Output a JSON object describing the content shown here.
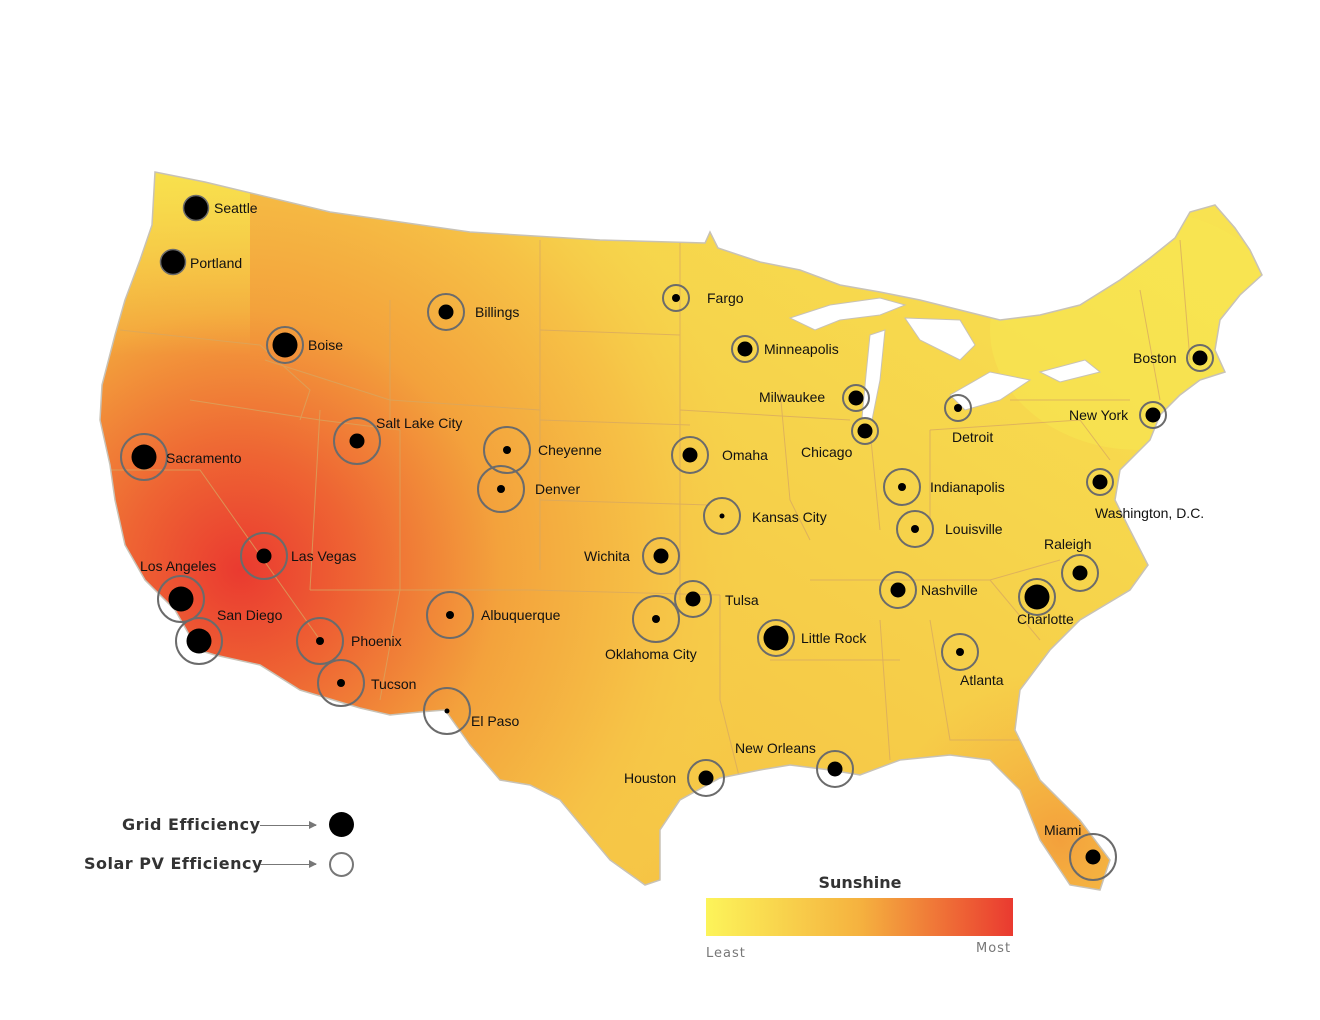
{
  "colors": {
    "least": "#fcf45a",
    "mid": "#f5b23f",
    "most": "#ea3a30",
    "border": "#d7a761",
    "grid_dot": "#000000",
    "solar_ring": "#6b6b6b"
  },
  "legend": {
    "grid_label": "Grid Efficiency",
    "solar_label": "Solar PV Efficiency"
  },
  "scale": {
    "title": "Sunshine",
    "min_label": "Least",
    "max_label": "Most"
  },
  "cities": [
    {
      "name": "Seattle",
      "grid": "large",
      "solar": "none"
    },
    {
      "name": "Portland",
      "grid": "large",
      "solar": "none"
    },
    {
      "name": "Boise",
      "grid": "large",
      "solar": "medium"
    },
    {
      "name": "Billings",
      "grid": "medium",
      "solar": "medium"
    },
    {
      "name": "Sacramento",
      "grid": "large",
      "solar": "large"
    },
    {
      "name": "Salt Lake City",
      "grid": "medium",
      "solar": "large"
    },
    {
      "name": "Cheyenne",
      "grid": "small",
      "solar": "large"
    },
    {
      "name": "Denver",
      "grid": "small",
      "solar": "large"
    },
    {
      "name": "Las Vegas",
      "grid": "medium",
      "solar": "large"
    },
    {
      "name": "Los Angeles",
      "grid": "large",
      "solar": "large"
    },
    {
      "name": "San Diego",
      "grid": "large",
      "solar": "large"
    },
    {
      "name": "Phoenix",
      "grid": "small",
      "solar": "large"
    },
    {
      "name": "Tucson",
      "grid": "small",
      "solar": "large"
    },
    {
      "name": "Albuquerque",
      "grid": "small",
      "solar": "large"
    },
    {
      "name": "El Paso",
      "grid": "tiny",
      "solar": "large"
    },
    {
      "name": "Fargo",
      "grid": "small",
      "solar": "small"
    },
    {
      "name": "Minneapolis",
      "grid": "medium",
      "solar": "small"
    },
    {
      "name": "Omaha",
      "grid": "medium",
      "solar": "medium"
    },
    {
      "name": "Kansas City",
      "grid": "tiny",
      "solar": "medium"
    },
    {
      "name": "Wichita",
      "grid": "medium",
      "solar": "medium"
    },
    {
      "name": "Tulsa",
      "grid": "medium",
      "solar": "medium"
    },
    {
      "name": "Oklahoma City",
      "grid": "small",
      "solar": "large"
    },
    {
      "name": "Houston",
      "grid": "medium",
      "solar": "medium"
    },
    {
      "name": "Little Rock",
      "grid": "large",
      "solar": "medium"
    },
    {
      "name": "New Orleans",
      "grid": "medium",
      "solar": "medium"
    },
    {
      "name": "Milwaukee",
      "grid": "medium",
      "solar": "small"
    },
    {
      "name": "Chicago",
      "grid": "medium",
      "solar": "small"
    },
    {
      "name": "Detroit",
      "grid": "small",
      "solar": "small"
    },
    {
      "name": "Indianapolis",
      "grid": "small",
      "solar": "medium"
    },
    {
      "name": "Louisville",
      "grid": "small",
      "solar": "medium"
    },
    {
      "name": "Nashville",
      "grid": "medium",
      "solar": "medium"
    },
    {
      "name": "Atlanta",
      "grid": "small",
      "solar": "medium"
    },
    {
      "name": "Charlotte",
      "grid": "large",
      "solar": "medium"
    },
    {
      "name": "Raleigh",
      "grid": "medium",
      "solar": "medium"
    },
    {
      "name": "Washington, D.C.",
      "grid": "medium",
      "solar": "small"
    },
    {
      "name": "New York",
      "grid": "medium",
      "solar": "small"
    },
    {
      "name": "Boston",
      "grid": "medium",
      "solar": "small"
    },
    {
      "name": "Miami",
      "grid": "medium",
      "solar": "large"
    }
  ]
}
